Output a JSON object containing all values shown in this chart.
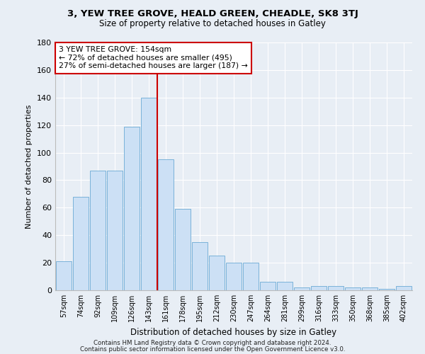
{
  "title1": "3, YEW TREE GROVE, HEALD GREEN, CHEADLE, SK8 3TJ",
  "title2": "Size of property relative to detached houses in Gatley",
  "xlabel": "Distribution of detached houses by size in Gatley",
  "ylabel": "Number of detached properties",
  "categories": [
    "57sqm",
    "74sqm",
    "92sqm",
    "109sqm",
    "126sqm",
    "143sqm",
    "161sqm",
    "178sqm",
    "195sqm",
    "212sqm",
    "230sqm",
    "247sqm",
    "264sqm",
    "281sqm",
    "299sqm",
    "316sqm",
    "333sqm",
    "350sqm",
    "368sqm",
    "385sqm",
    "402sqm"
  ],
  "values": [
    21,
    68,
    87,
    87,
    119,
    140,
    95,
    59,
    35,
    25,
    20,
    20,
    6,
    6,
    2,
    3,
    3,
    2,
    2,
    1,
    3
  ],
  "bar_color": "#cce0f5",
  "bar_edge_color": "#6aaad4",
  "vline_color": "#cc0000",
  "annotation_text": "3 YEW TREE GROVE: 154sqm\n← 72% of detached houses are smaller (495)\n27% of semi-detached houses are larger (187) →",
  "annotation_box_color": "#ffffff",
  "annotation_box_edge": "#cc0000",
  "footer1": "Contains HM Land Registry data © Crown copyright and database right 2024.",
  "footer2": "Contains public sector information licensed under the Open Government Licence v3.0.",
  "background_color": "#e8eef5",
  "plot_background": "#e8eef5",
  "ylim": [
    0,
    180
  ],
  "yticks": [
    0,
    20,
    40,
    60,
    80,
    100,
    120,
    140,
    160,
    180
  ]
}
